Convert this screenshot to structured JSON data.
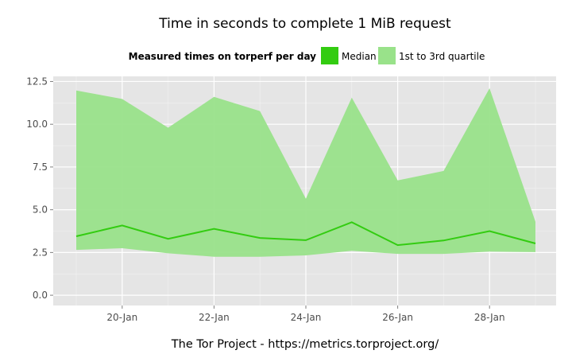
{
  "chart_data": {
    "type": "area",
    "title": "Time in seconds to complete 1 MiB request",
    "xlabel": "The Tor Project - https://metrics.torproject.org/",
    "ylabel": "",
    "legend": {
      "title": "Measured times on torperf per day",
      "position": "top",
      "entries": [
        {
          "name": "Median",
          "color": "#33cc11"
        },
        {
          "name": "1st to 3rd quartile",
          "color": "#99e28a"
        }
      ]
    },
    "x": [
      "19-Jan",
      "20-Jan",
      "21-Jan",
      "22-Jan",
      "23-Jan",
      "24-Jan",
      "25-Jan",
      "26-Jan",
      "27-Jan",
      "28-Jan",
      "29-Jan"
    ],
    "x_ticks": [
      "20-Jan",
      "22-Jan",
      "24-Jan",
      "26-Jan",
      "28-Jan"
    ],
    "y_ticks": [
      "0.0",
      "2.5",
      "5.0",
      "7.5",
      "10.0",
      "12.5"
    ],
    "ylim": [
      -0.6,
      12.8
    ],
    "grid": true,
    "series": [
      {
        "name": "Median",
        "values": [
          3.45,
          4.08,
          3.3,
          3.88,
          3.35,
          3.22,
          4.27,
          2.93,
          3.2,
          3.75,
          3.03
        ]
      },
      {
        "name": "1st to 3rd quartile",
        "lower": [
          2.65,
          2.75,
          2.45,
          2.25,
          2.25,
          2.33,
          2.6,
          2.42,
          2.42,
          2.55,
          2.52
        ],
        "upper": [
          11.97,
          11.48,
          9.8,
          11.6,
          10.77,
          5.65,
          11.56,
          6.72,
          7.27,
          12.1,
          4.3
        ]
      }
    ]
  }
}
